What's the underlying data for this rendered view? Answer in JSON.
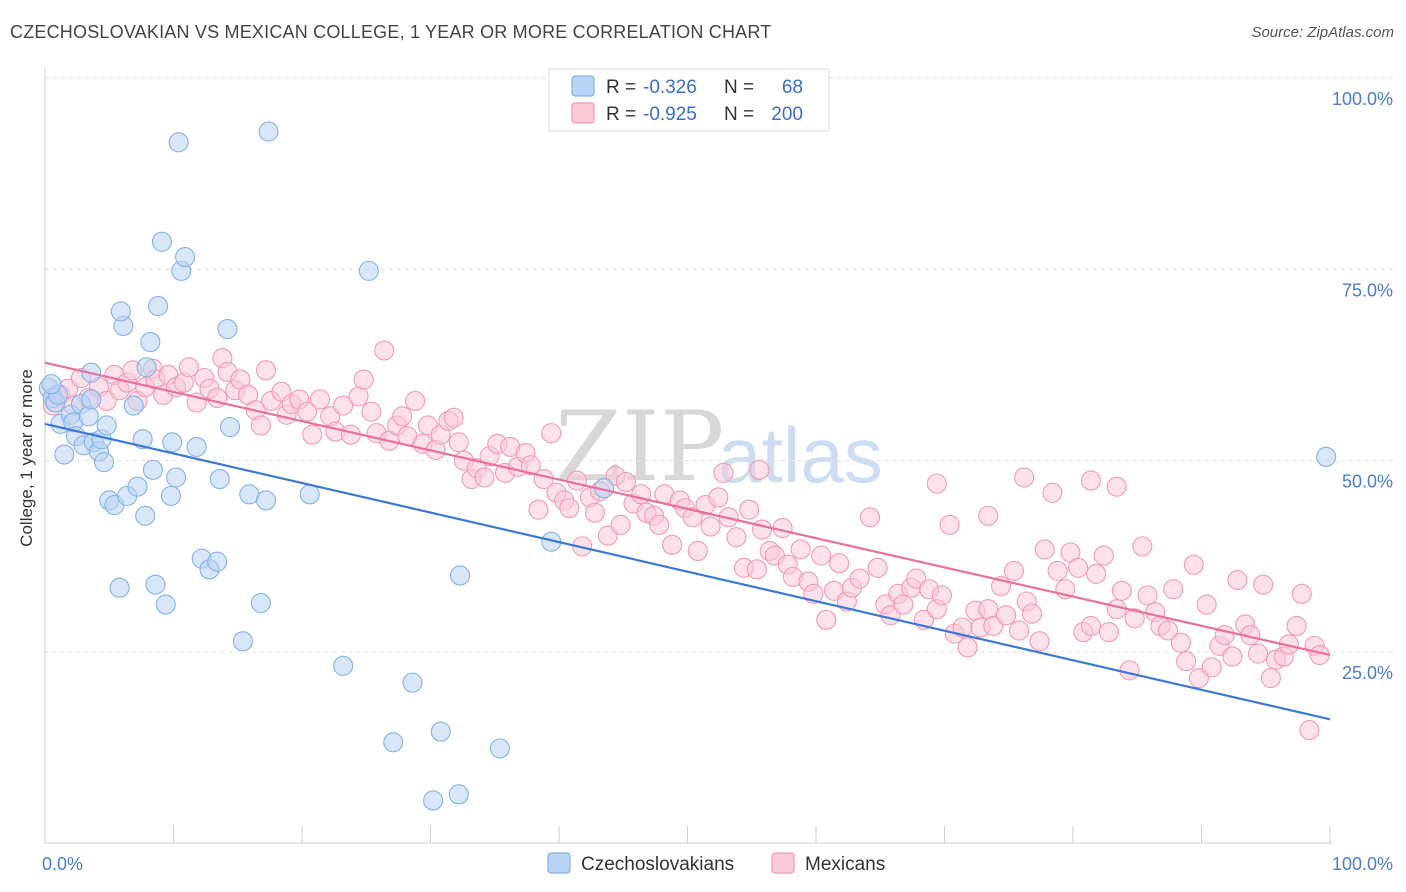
{
  "header": {
    "title": "CZECHOSLOVAKIAN VS MEXICAN COLLEGE, 1 YEAR OR MORE CORRELATION CHART",
    "source": "Source: ZipAtlas.com"
  },
  "legend": {
    "r_label": "R =",
    "n_label": "N =",
    "rows": [
      {
        "r": "-0.326",
        "n": "68",
        "color": "#9ec3f0"
      },
      {
        "r": "-0.925",
        "n": "200",
        "color": "#f7b9cd"
      }
    ]
  },
  "watermark": {
    "zip": "ZIP",
    "atlas": "atlas"
  },
  "colors": {
    "blue_fill": "#b8d3f3",
    "blue_stroke": "#86b1e6",
    "blue_line": "#3a78d4",
    "pink_fill": "#f9c9d8",
    "pink_stroke": "#ef9ab6",
    "pink_line": "#e8709a",
    "tick_text": "#4a7cc8"
  },
  "chart_data": {
    "type": "scatter",
    "title": "CZECHOSLOVAKIAN VS MEXICAN COLLEGE, 1 YEAR OR MORE CORRELATION CHART",
    "xlabel": "",
    "ylabel": "College, 1 year or more",
    "xlim": [
      0,
      100
    ],
    "ylim": [
      0,
      100
    ],
    "x_ticks": [
      "0.0%",
      "100.0%"
    ],
    "y_ticks": [
      {
        "value": 100,
        "label": "100.0%"
      },
      {
        "value": 75,
        "label": "75.0%"
      },
      {
        "value": 50,
        "label": "50.0%"
      },
      {
        "value": 25,
        "label": "25.0%"
      }
    ],
    "grid": true,
    "legend_position": "top-center",
    "series": [
      {
        "name": "Czechoslovakians",
        "r": -0.326,
        "n": 68,
        "trend": {
          "x": [
            0,
            100
          ],
          "y": [
            54.8,
            16.2
          ]
        },
        "points": [
          [
            0.3,
            59.5
          ],
          [
            0.6,
            58.2
          ],
          [
            0.8,
            57.6
          ],
          [
            1.2,
            54.8
          ],
          [
            1.5,
            50.8
          ],
          [
            2,
            56
          ],
          [
            2.2,
            55
          ],
          [
            2.4,
            53.2
          ],
          [
            2.8,
            57.4
          ],
          [
            3,
            52
          ],
          [
            3.4,
            55.8
          ],
          [
            3.6,
            58
          ],
          [
            3.8,
            52.4
          ],
          [
            4.2,
            51.2
          ],
          [
            4.4,
            52.8
          ],
          [
            4.8,
            54.6
          ],
          [
            4.6,
            49.8
          ],
          [
            5,
            44.8
          ],
          [
            5.4,
            44.2
          ],
          [
            5.8,
            33.4
          ],
          [
            6.4,
            45.4
          ],
          [
            6.1,
            67.6
          ],
          [
            5.9,
            69.5
          ],
          [
            6.9,
            57.2
          ],
          [
            7.2,
            46.6
          ],
          [
            7.6,
            52.8
          ],
          [
            7.8,
            42.8
          ],
          [
            8.4,
            48.8
          ],
          [
            8.6,
            33.8
          ],
          [
            8.8,
            70.2
          ],
          [
            8.2,
            65.5
          ],
          [
            9.1,
            78.6
          ],
          [
            9.4,
            31.2
          ],
          [
            9.9,
            52.4
          ],
          [
            9.8,
            45.4
          ],
          [
            10.2,
            47.8
          ],
          [
            10.6,
            74.8
          ],
          [
            10.4,
            91.6
          ],
          [
            10.9,
            76.6
          ],
          [
            11.8,
            51.8
          ],
          [
            12.2,
            37.2
          ],
          [
            12.8,
            35.8
          ],
          [
            13.4,
            36.8
          ],
          [
            13.6,
            47.6
          ],
          [
            14.2,
            67.2
          ],
          [
            14.4,
            54.4
          ],
          [
            15.4,
            26.4
          ],
          [
            15.9,
            45.6
          ],
          [
            16.8,
            31.4
          ],
          [
            17.2,
            44.8
          ],
          [
            17.4,
            93
          ],
          [
            20.6,
            45.6
          ],
          [
            23.2,
            23.2
          ],
          [
            25.2,
            74.8
          ],
          [
            28.6,
            21
          ],
          [
            27.1,
            13.2
          ],
          [
            30.2,
            5.6
          ],
          [
            30.8,
            14.6
          ],
          [
            32.2,
            6.4
          ],
          [
            32.3,
            35
          ],
          [
            35.4,
            12.4
          ],
          [
            39.4,
            39.4
          ],
          [
            43.5,
            46.4
          ],
          [
            3.6,
            61.5
          ],
          [
            7.9,
            62.2
          ],
          [
            99.7,
            50.5
          ],
          [
            1.0,
            58.6
          ],
          [
            0.5,
            60
          ]
        ]
      },
      {
        "name": "Mexicans",
        "r": -0.925,
        "n": 200,
        "trend": {
          "x": [
            0,
            100
          ],
          "y": [
            62.8,
            24.6
          ]
        },
        "points": [
          [
            0.6,
            57.2
          ],
          [
            1.2,
            58.6
          ],
          [
            1.8,
            59.4
          ],
          [
            2.2,
            57.2
          ],
          [
            2.8,
            60.8
          ],
          [
            3.4,
            58.2
          ],
          [
            4.2,
            59.6
          ],
          [
            4.8,
            57.8
          ],
          [
            5.4,
            61.2
          ],
          [
            5.8,
            59.2
          ],
          [
            6.4,
            60.2
          ],
          [
            6.8,
            61.8
          ],
          [
            7.2,
            57.8
          ],
          [
            7.8,
            59.6
          ],
          [
            8.4,
            62
          ],
          [
            8.6,
            60.6
          ],
          [
            9.2,
            58.6
          ],
          [
            9.6,
            61.2
          ],
          [
            10.2,
            59.6
          ],
          [
            10.8,
            60.2
          ],
          [
            11.2,
            62.2
          ],
          [
            11.8,
            57.6
          ],
          [
            12.4,
            60.8
          ],
          [
            12.8,
            59.4
          ],
          [
            13.4,
            58.2
          ],
          [
            13.8,
            63.4
          ],
          [
            14.2,
            61.6
          ],
          [
            14.8,
            59.2
          ],
          [
            15.2,
            60.6
          ],
          [
            15.8,
            58.6
          ],
          [
            16.4,
            56.6
          ],
          [
            16.8,
            54.6
          ],
          [
            17.2,
            61.8
          ],
          [
            17.6,
            57.8
          ],
          [
            18.4,
            59
          ],
          [
            18.8,
            56
          ],
          [
            19.2,
            57.4
          ],
          [
            19.8,
            58
          ],
          [
            20.4,
            56.4
          ],
          [
            20.8,
            53.4
          ],
          [
            21.4,
            58
          ],
          [
            22.2,
            55.8
          ],
          [
            22.6,
            53.8
          ],
          [
            23.2,
            57.2
          ],
          [
            23.8,
            53.4
          ],
          [
            24.4,
            58.4
          ],
          [
            24.8,
            60.6
          ],
          [
            25.4,
            56.4
          ],
          [
            25.8,
            53.6
          ],
          [
            26.4,
            64.4
          ],
          [
            26.8,
            52.6
          ],
          [
            27.4,
            54.6
          ],
          [
            27.8,
            55.8
          ],
          [
            28.2,
            53.2
          ],
          [
            28.8,
            57.8
          ],
          [
            29.4,
            52.2
          ],
          [
            29.8,
            54.6
          ],
          [
            30.4,
            51.4
          ],
          [
            30.8,
            53.4
          ],
          [
            31.4,
            55.2
          ],
          [
            31.8,
            55.6
          ],
          [
            32.2,
            52.4
          ],
          [
            32.6,
            50
          ],
          [
            33.2,
            47.6
          ],
          [
            33.6,
            49
          ],
          [
            34.2,
            47.8
          ],
          [
            34.6,
            50.6
          ],
          [
            35.2,
            52.2
          ],
          [
            35.8,
            48.4
          ],
          [
            36.2,
            51.8
          ],
          [
            36.8,
            49.2
          ],
          [
            37.4,
            51
          ],
          [
            37.8,
            49.4
          ],
          [
            38.4,
            43.6
          ],
          [
            38.8,
            47.6
          ],
          [
            39.4,
            53.6
          ],
          [
            39.8,
            45.8
          ],
          [
            40.4,
            44.8
          ],
          [
            40.8,
            43.8
          ],
          [
            41.4,
            47.4
          ],
          [
            41.8,
            38.8
          ],
          [
            42.4,
            45.2
          ],
          [
            42.8,
            43.2
          ],
          [
            43.2,
            46
          ],
          [
            43.8,
            40.2
          ],
          [
            44.4,
            48
          ],
          [
            44.8,
            41.6
          ],
          [
            45.2,
            47.2
          ],
          [
            45.8,
            44.4
          ],
          [
            46.4,
            45.6
          ],
          [
            46.8,
            43.2
          ],
          [
            47.4,
            42.8
          ],
          [
            47.8,
            41.6
          ],
          [
            48.2,
            45.6
          ],
          [
            48.8,
            39
          ],
          [
            49.4,
            44.8
          ],
          [
            49.8,
            43.8
          ],
          [
            50.4,
            42.6
          ],
          [
            50.8,
            38.2
          ],
          [
            51.4,
            44.2
          ],
          [
            51.8,
            41.4
          ],
          [
            52.4,
            45.2
          ],
          [
            52.8,
            48.4
          ],
          [
            53.2,
            42.6
          ],
          [
            53.8,
            40
          ],
          [
            54.4,
            36
          ],
          [
            54.8,
            43.6
          ],
          [
            55.4,
            35.8
          ],
          [
            55.8,
            41
          ],
          [
            56.4,
            38.2
          ],
          [
            56.8,
            37.6
          ],
          [
            57.4,
            41.2
          ],
          [
            57.8,
            36.4
          ],
          [
            58.2,
            34.8
          ],
          [
            58.8,
            38.4
          ],
          [
            59.4,
            34.2
          ],
          [
            59.8,
            32.6
          ],
          [
            60.4,
            37.6
          ],
          [
            60.8,
            29.2
          ],
          [
            61.4,
            33
          ],
          [
            61.8,
            36.6
          ],
          [
            62.4,
            31.6
          ],
          [
            62.8,
            33.4
          ],
          [
            63.4,
            34.6
          ],
          [
            64.2,
            42.6
          ],
          [
            64.8,
            36
          ],
          [
            65.4,
            31.2
          ],
          [
            65.8,
            29.8
          ],
          [
            66.4,
            32.6
          ],
          [
            66.8,
            31.2
          ],
          [
            67.4,
            33.4
          ],
          [
            67.8,
            34.6
          ],
          [
            68.4,
            29.2
          ],
          [
            68.8,
            33.2
          ],
          [
            69.4,
            30.6
          ],
          [
            69.8,
            32.4
          ],
          [
            70.4,
            41.6
          ],
          [
            70.8,
            27.4
          ],
          [
            71.4,
            28.2
          ],
          [
            71.8,
            25.6
          ],
          [
            72.4,
            30.4
          ],
          [
            72.8,
            28.2
          ],
          [
            73.4,
            30.6
          ],
          [
            73.8,
            28.4
          ],
          [
            74.4,
            33.6
          ],
          [
            74.8,
            29.8
          ],
          [
            75.4,
            35.6
          ],
          [
            75.8,
            27.8
          ],
          [
            76.4,
            31.6
          ],
          [
            76.8,
            30
          ],
          [
            77.4,
            26.4
          ],
          [
            77.8,
            38.4
          ],
          [
            78.4,
            45.8
          ],
          [
            78.8,
            35.6
          ],
          [
            79.4,
            33.2
          ],
          [
            79.8,
            38
          ],
          [
            80.4,
            36
          ],
          [
            80.8,
            27.6
          ],
          [
            81.4,
            28.4
          ],
          [
            81.8,
            35.2
          ],
          [
            82.4,
            37.6
          ],
          [
            82.8,
            27.6
          ],
          [
            83.4,
            30.6
          ],
          [
            83.8,
            33
          ],
          [
            84.4,
            22.6
          ],
          [
            84.8,
            29.4
          ],
          [
            85.4,
            38.8
          ],
          [
            85.8,
            32.4
          ],
          [
            86.4,
            30.2
          ],
          [
            86.8,
            28.4
          ],
          [
            87.4,
            27.8
          ],
          [
            87.8,
            33.2
          ],
          [
            88.4,
            26.2
          ],
          [
            88.8,
            23.8
          ],
          [
            89.4,
            36.4
          ],
          [
            89.8,
            21.6
          ],
          [
            90.4,
            31.2
          ],
          [
            90.8,
            23
          ],
          [
            91.4,
            25.8
          ],
          [
            91.8,
            27.2
          ],
          [
            92.4,
            24.4
          ],
          [
            92.8,
            34.4
          ],
          [
            93.4,
            28.6
          ],
          [
            93.8,
            27.2
          ],
          [
            94.4,
            24.8
          ],
          [
            94.8,
            33.8
          ],
          [
            95.4,
            21.6
          ],
          [
            95.8,
            24
          ],
          [
            96.4,
            24.4
          ],
          [
            96.8,
            26
          ],
          [
            97.4,
            28.4
          ],
          [
            97.8,
            32.6
          ],
          [
            98.4,
            14.8
          ],
          [
            98.8,
            25.8
          ],
          [
            99.2,
            24.6
          ],
          [
            81.4,
            47.4
          ],
          [
            76.2,
            47.8
          ],
          [
            73.4,
            42.8
          ],
          [
            69.4,
            47
          ],
          [
            83.4,
            46.6
          ],
          [
            55.6,
            48.8
          ]
        ]
      }
    ]
  }
}
